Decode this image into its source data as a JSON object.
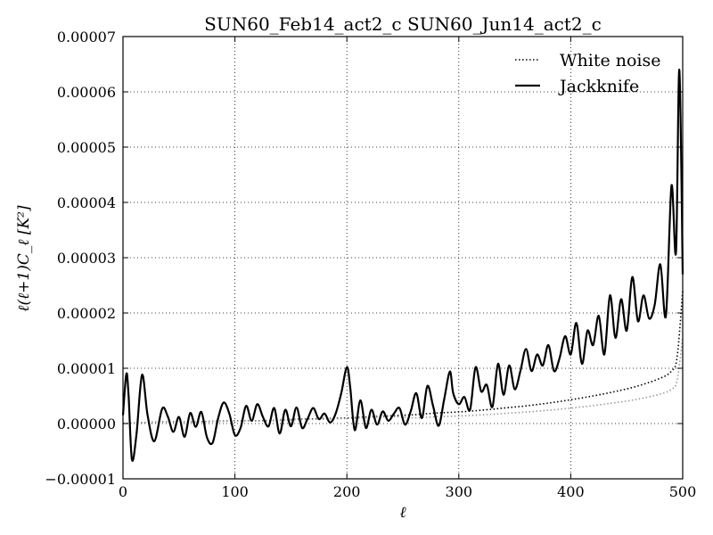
{
  "chart_data": {
    "type": "line",
    "title": "SUN60_Feb14_act2_c SUN60_Jun14_act2_c",
    "xlabel": "ℓ",
    "ylabel": "ℓ(ℓ+1)C_ℓ [K²]",
    "xlim": [
      0,
      500
    ],
    "ylim": [
      -1e-05,
      7e-05
    ],
    "x_ticks": [
      0,
      100,
      200,
      300,
      400,
      500
    ],
    "x_tick_labels": [
      "0",
      "100",
      "200",
      "300",
      "400",
      "500"
    ],
    "y_ticks": [
      -1e-05,
      0.0,
      1e-05,
      2e-05,
      3e-05,
      4e-05,
      5e-05,
      6e-05,
      7e-05
    ],
    "y_tick_labels": [
      "−0.00001",
      "0.00000",
      "0.00001",
      "0.00002",
      "0.00003",
      "0.00004",
      "0.00005",
      "0.00006",
      "0.00007"
    ],
    "grid": true,
    "legend_position": "top-right",
    "series": [
      {
        "name": "White noise",
        "style": "dotted",
        "color": "#000000",
        "x": [
          0,
          20,
          40,
          60,
          80,
          100,
          120,
          140,
          160,
          180,
          200,
          220,
          240,
          260,
          280,
          300,
          320,
          340,
          360,
          380,
          400,
          420,
          440,
          460,
          480,
          490,
          495,
          500
        ],
        "y": [
          0.0,
          2e-07,
          3e-07,
          3e-07,
          4e-07,
          5e-07,
          5e-07,
          6e-07,
          8e-07,
          9e-07,
          1e-06,
          1.2e-06,
          1.4e-06,
          1.6e-06,
          1.9e-06,
          2.1e-06,
          2.4e-06,
          2.8e-06,
          3.2e-06,
          3.7e-06,
          4.3e-06,
          5e-06,
          5.8e-06,
          6.8e-06,
          8.2e-06,
          9.5e-06,
          1.2e-05,
          2.4e-05
        ]
      },
      {
        "name": "Jackknife",
        "style": "solid",
        "color": "#000000",
        "x": [
          0,
          3,
          5,
          8,
          12,
          17,
          22,
          28,
          35,
          40,
          45,
          50,
          55,
          60,
          65,
          70,
          75,
          80,
          85,
          90,
          95,
          100,
          105,
          110,
          115,
          120,
          125,
          130,
          135,
          140,
          145,
          150,
          155,
          160,
          165,
          170,
          175,
          180,
          185,
          190,
          195,
          200,
          203,
          207,
          212,
          217,
          222,
          227,
          232,
          237,
          242,
          247,
          252,
          257,
          262,
          267,
          272,
          277,
          282,
          287,
          292,
          295,
          300,
          305,
          310,
          315,
          320,
          325,
          330,
          335,
          340,
          345,
          350,
          355,
          360,
          365,
          370,
          375,
          380,
          385,
          390,
          395,
          400,
          405,
          410,
          415,
          420,
          425,
          430,
          435,
          440,
          445,
          450,
          455,
          460,
          465,
          470,
          475,
          480,
          485,
          490,
          494,
          497,
          500
        ],
        "y": [
          1.5e-06,
          9e-06,
          5e-06,
          -6.5e-06,
          -2e-06,
          8.8e-06,
          1.5e-06,
          -3.2e-06,
          2.7e-06,
          1.3e-06,
          -1.5e-06,
          1.2e-06,
          -2.4e-06,
          1.9e-06,
          -6e-07,
          2.1e-06,
          -2.5e-06,
          -3.5e-06,
          1e-06,
          3.8e-06,
          1.8e-06,
          -2.1e-06,
          -8e-07,
          3.2e-06,
          5e-07,
          3.5e-06,
          1.2e-06,
          -5e-07,
          2.8e-06,
          -1.8e-06,
          2.5e-06,
          -5e-07,
          2.9e-06,
          -8e-07,
          9e-07,
          2.8e-06,
          8e-07,
          1.8e-06,
          2e-07,
          1.8e-06,
          5.5e-06,
          1.02e-05,
          6.5e-06,
          -1.2e-06,
          4.2e-06,
          -8e-07,
          2.5e-06,
          -2e-07,
          2.2e-06,
          5e-07,
          1.8e-06,
          2.8e-06,
          -2e-07,
          2.2e-06,
          5.5e-06,
          1e-06,
          6.8e-06,
          3.2e-06,
          -4e-07,
          4.5e-06,
          9.4e-06,
          5.5e-06,
          3.5e-06,
          4.8e-06,
          2.5e-06,
          1.02e-05,
          5.8e-06,
          7e-06,
          3e-06,
          1.08e-05,
          5.2e-06,
          1.05e-05,
          6.2e-06,
          9.5e-06,
          1.35e-05,
          9.5e-06,
          1.25e-05,
          1.05e-05,
          1.42e-05,
          9.5e-06,
          1.18e-05,
          1.58e-05,
          1.25e-05,
          1.82e-05,
          1.08e-05,
          1.68e-05,
          1.42e-05,
          1.95e-05,
          1.25e-05,
          2.32e-05,
          1.55e-05,
          2.25e-05,
          1.68e-05,
          2.65e-05,
          1.85e-05,
          2.32e-05,
          1.9e-05,
          2.15e-05,
          2.88e-05,
          1.95e-05,
          4.3e-05,
          3.1e-05,
          6.4e-05,
          2.7e-05
        ]
      }
    ]
  }
}
